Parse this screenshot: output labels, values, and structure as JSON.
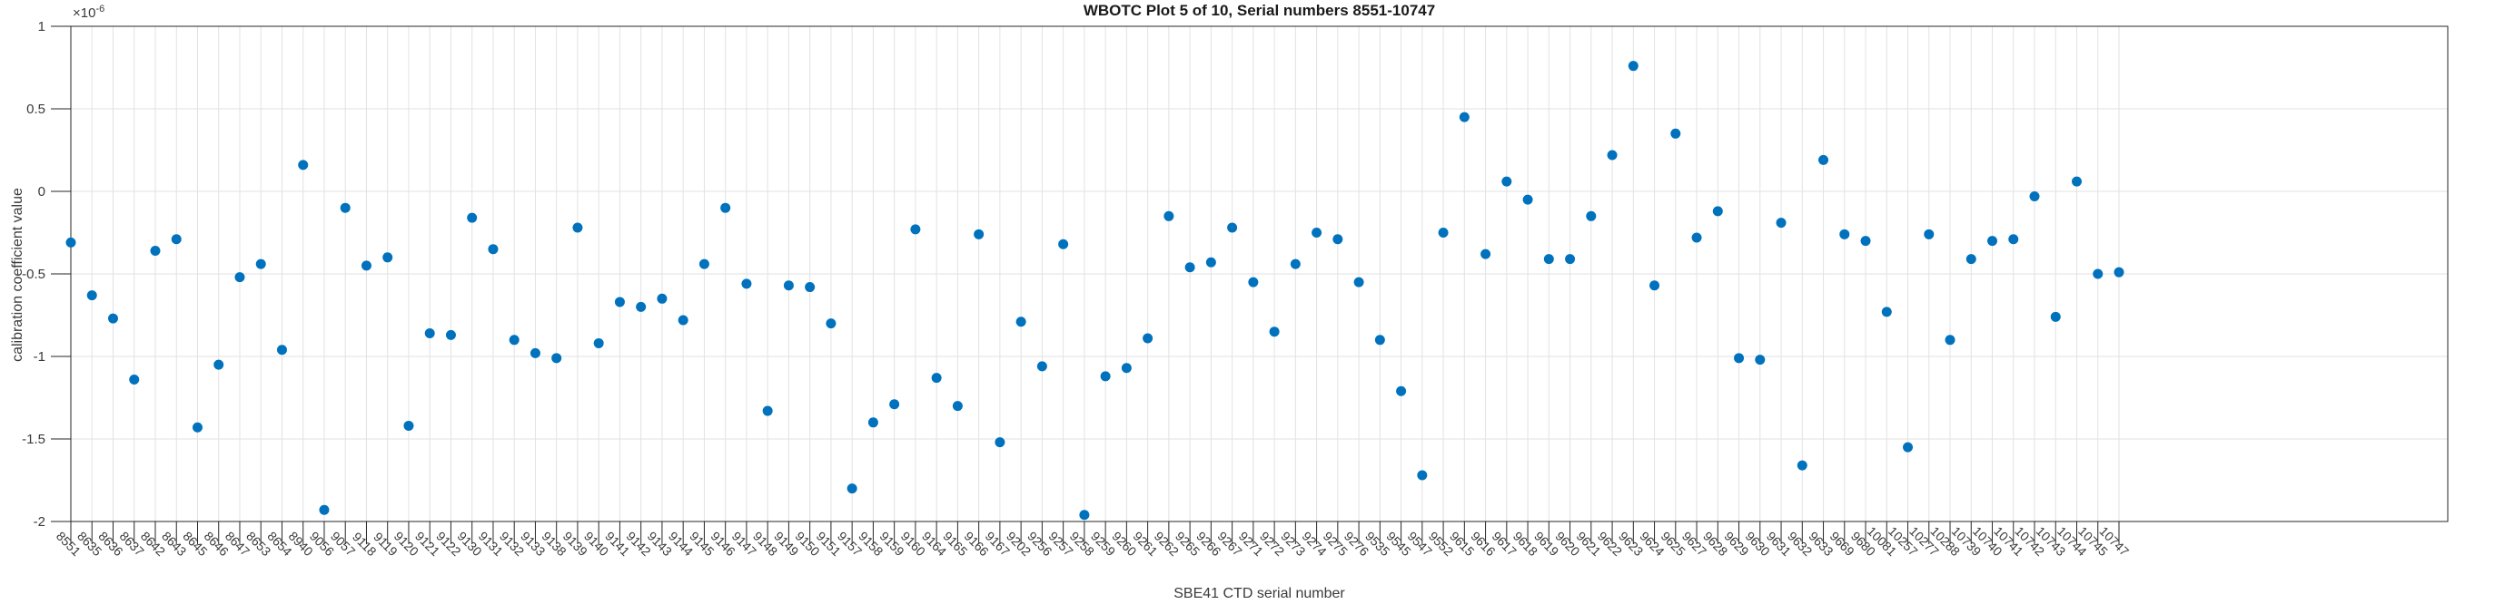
{
  "title": "WBOTC Plot 5 of 10, Serial numbers 8551-10747",
  "y_exponent": {
    "base": "×10",
    "exp": "-6"
  },
  "chart_data": {
    "type": "scatter",
    "title": "WBOTC Plot 5 of 10, Serial numbers 8551-10747",
    "xlabel": "SBE41 CTD serial number",
    "ylabel": "calibration coefficient value",
    "value_scale": "1e-6",
    "ylim": [
      -2,
      1
    ],
    "ytick_values": [
      1,
      0.5,
      0,
      -0.5,
      -1,
      -1.5,
      -2
    ],
    "ytick_labels": [
      "1",
      "0.5",
      "0",
      "-0.5",
      "-1",
      "-1.5",
      "-2"
    ],
    "grid": true,
    "legend": "none",
    "marker_color": "#0072BD",
    "axis_color": "#262626",
    "grid_color": "#e2e2e2",
    "categories": [
      "8551",
      "8635",
      "8636",
      "8637",
      "8642",
      "8643",
      "8645",
      "8646",
      "8647",
      "8653",
      "8654",
      "8940",
      "9056",
      "9057",
      "9118",
      "9119",
      "9120",
      "9121",
      "9122",
      "9130",
      "9131",
      "9132",
      "9133",
      "9138",
      "9139",
      "9140",
      "9141",
      "9142",
      "9143",
      "9144",
      "9145",
      "9146",
      "9147",
      "9148",
      "9149",
      "9150",
      "9151",
      "9157",
      "9158",
      "9159",
      "9160",
      "9164",
      "9165",
      "9166",
      "9167",
      "9202",
      "9256",
      "9257",
      "9258",
      "9259",
      "9260",
      "9261",
      "9262",
      "9265",
      "9266",
      "9267",
      "9271",
      "9272",
      "9273",
      "9274",
      "9275",
      "9276",
      "9535",
      "9545",
      "9547",
      "9552",
      "9615",
      "9616",
      "9617",
      "9618",
      "9619",
      "9620",
      "9621",
      "9622",
      "9623",
      "9624",
      "9625",
      "9627",
      "9628",
      "9629",
      "9630",
      "9631",
      "9632",
      "9633",
      "9669",
      "9680",
      "10081",
      "10257",
      "10277",
      "10288",
      "10739",
      "10740",
      "10741",
      "10742",
      "10743",
      "10744",
      "10745",
      "10747"
    ],
    "values": [
      -0.31,
      -0.63,
      -0.77,
      -1.14,
      -0.36,
      -0.29,
      -1.43,
      -1.05,
      -0.52,
      -0.44,
      -0.96,
      0.16,
      -1.93,
      -0.1,
      -0.45,
      -0.4,
      -1.42,
      -0.86,
      -0.87,
      -0.16,
      -0.35,
      -0.9,
      -0.98,
      -1.01,
      -0.22,
      -0.92,
      -0.67,
      -0.7,
      -0.65,
      -0.78,
      -0.44,
      -0.1,
      -0.56,
      -1.33,
      -0.57,
      -0.58,
      -0.8,
      -1.8,
      -1.4,
      -1.29,
      -0.23,
      -1.13,
      -1.3,
      -0.26,
      -1.52,
      -0.79,
      -1.06,
      -0.32,
      -1.96,
      -1.12,
      -1.07,
      -0.89,
      -0.15,
      -0.46,
      -0.43,
      -0.22,
      -0.55,
      -0.85,
      -0.44,
      -0.25,
      -0.29,
      -0.55,
      -0.9,
      -1.21,
      -1.72,
      -0.25,
      0.45,
      -0.38,
      0.06,
      -0.05,
      -0.41,
      -0.41,
      -0.15,
      0.22,
      0.76,
      -0.57,
      0.35,
      -0.28,
      -0.12,
      -1.01,
      -1.02,
      -0.19,
      -1.66,
      0.19,
      -0.26,
      -0.3,
      -0.73,
      -1.55,
      -0.26,
      -0.9,
      -0.41,
      -0.3,
      -0.29,
      -0.03,
      -0.76,
      0.06,
      -0.5,
      -0.49
    ]
  }
}
